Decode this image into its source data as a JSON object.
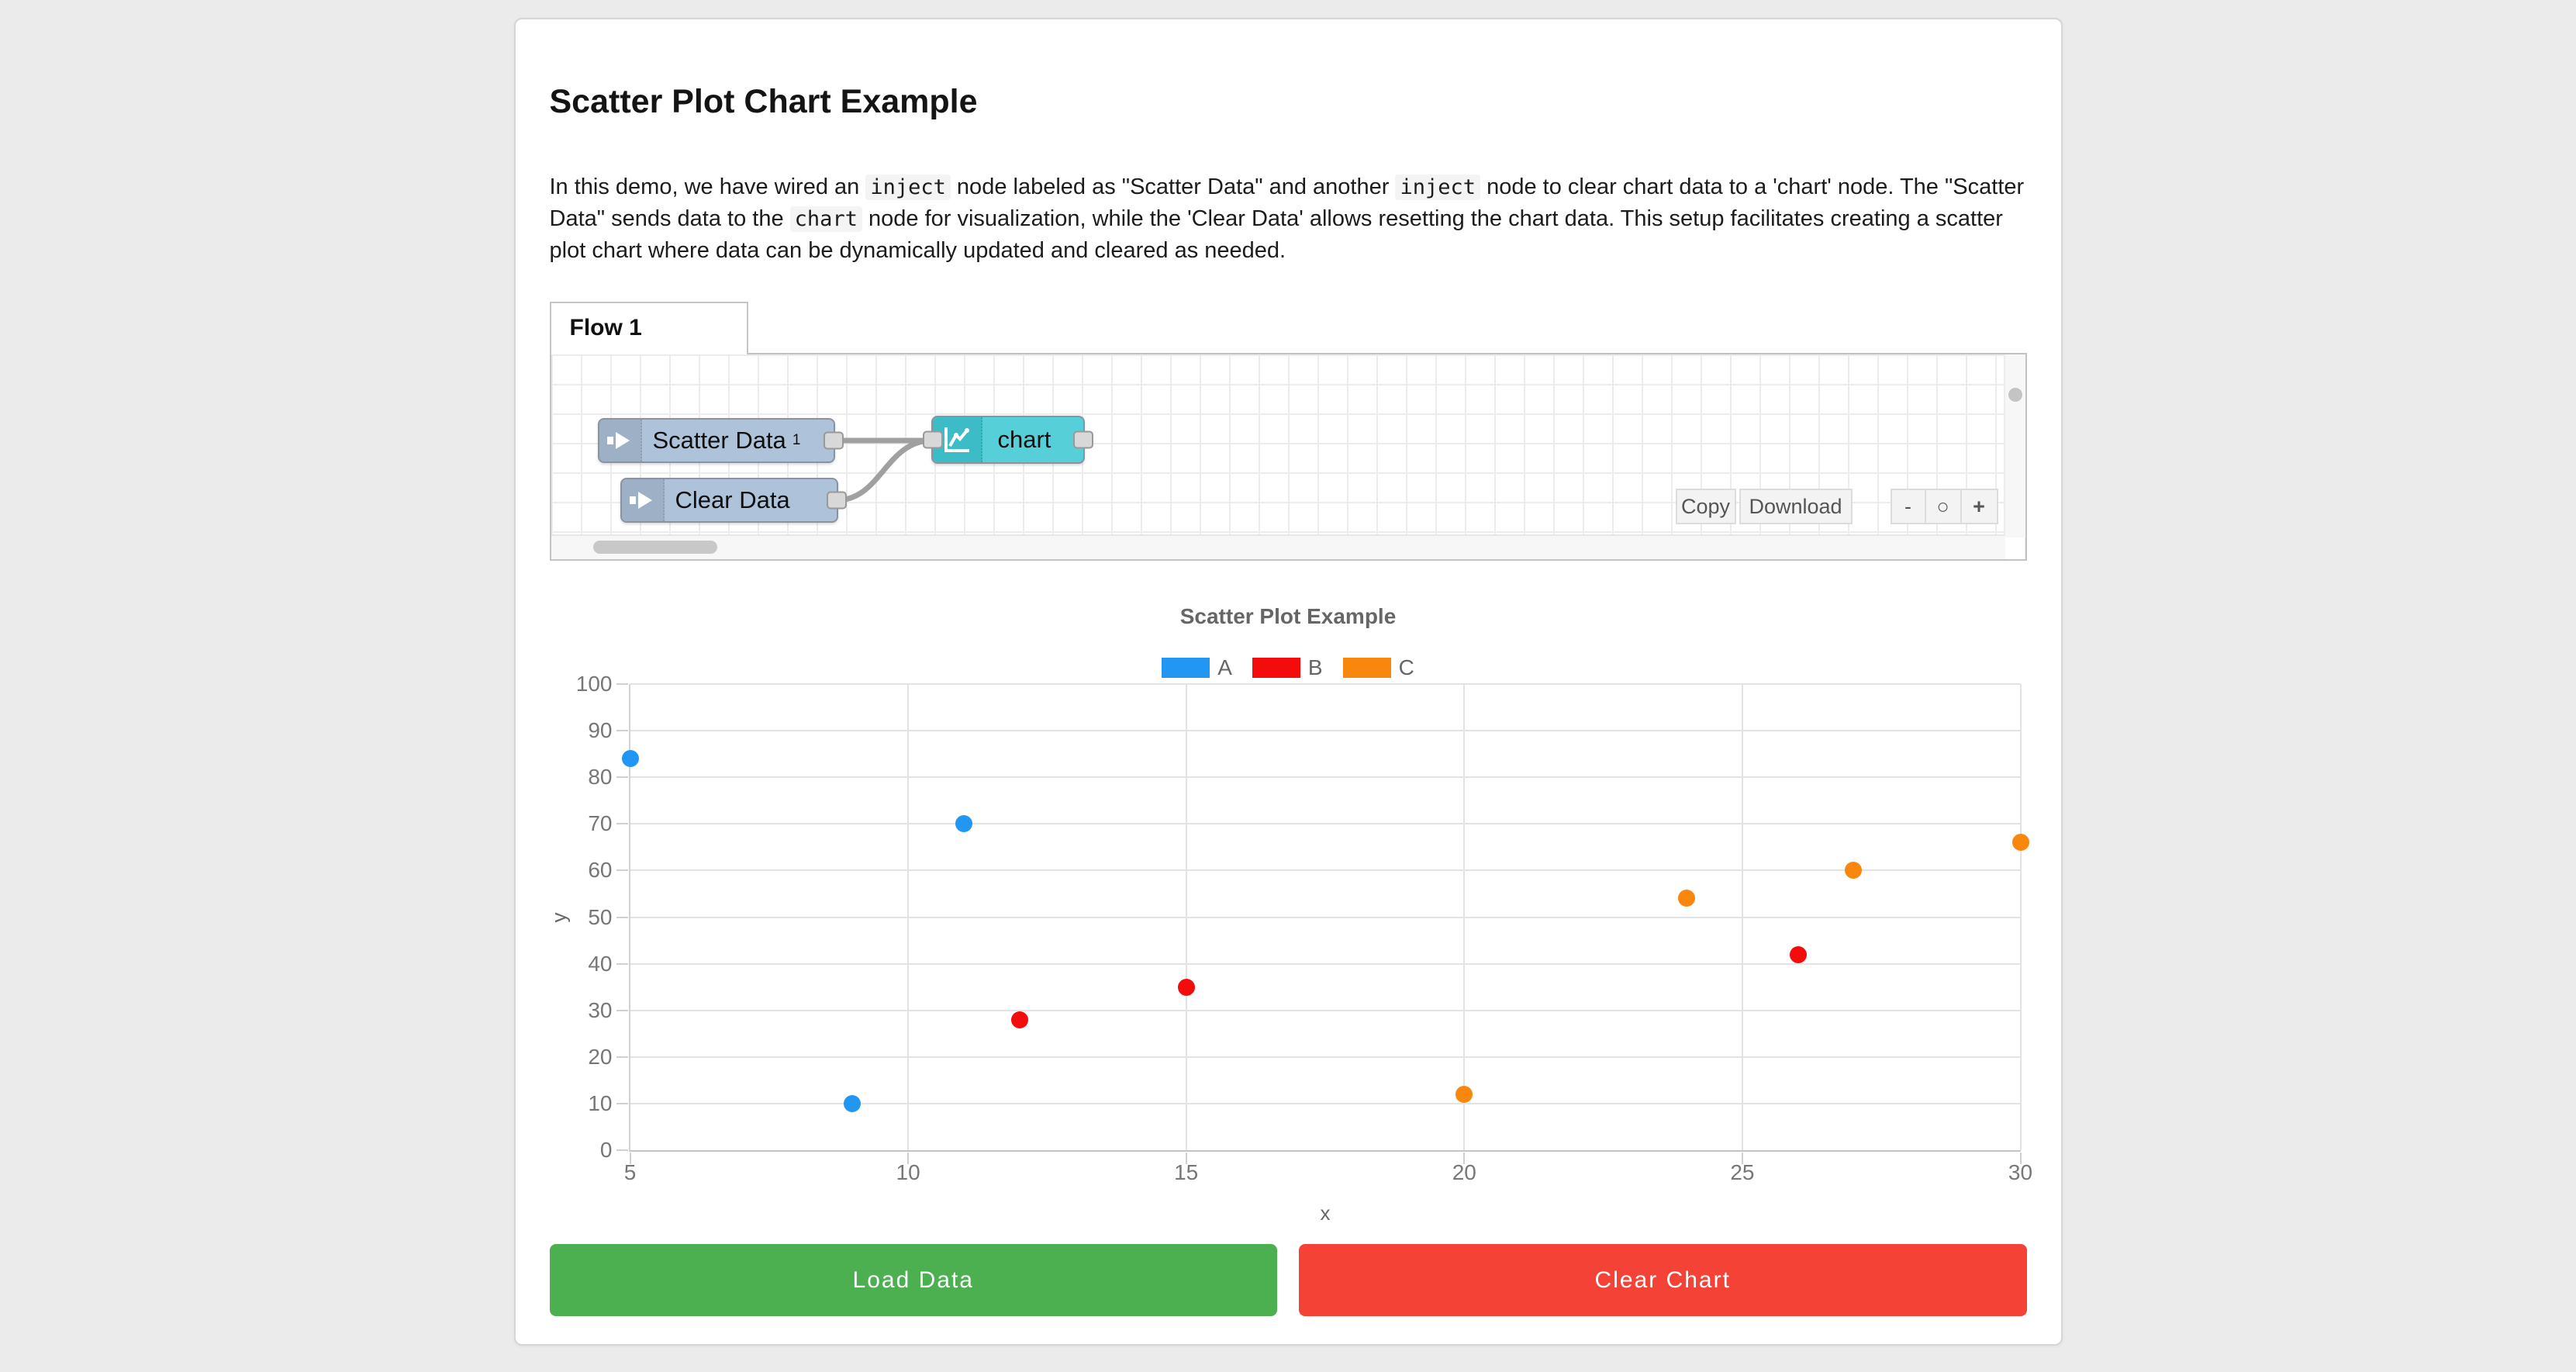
{
  "header": {
    "title": "Scatter Plot Chart Example"
  },
  "description": {
    "segments": [
      {
        "t": "text",
        "v": "In this demo, we have wired an "
      },
      {
        "t": "code",
        "v": "inject"
      },
      {
        "t": "text",
        "v": " node labeled as \"Scatter Data\" and another "
      },
      {
        "t": "code",
        "v": "inject"
      },
      {
        "t": "text",
        "v": " node to clear chart data to a 'chart' node. The \"Scatter Data\" sends data to the "
      },
      {
        "t": "code",
        "v": "chart"
      },
      {
        "t": "text",
        "v": " node for visualization, while the 'Clear Data' allows resetting the chart data. This setup facilitates creating a scatter plot chart where data can be dynamically updated and cleared as needed."
      }
    ]
  },
  "flow_editor": {
    "tab_label": "Flow 1",
    "nodes": {
      "scatter": {
        "label": "Scatter Data",
        "sup": "1"
      },
      "clear": {
        "label": "Clear Data"
      },
      "chart": {
        "label": "chart"
      }
    },
    "toolbar": {
      "copy": "Copy",
      "download": "Download",
      "zoom_out": "-",
      "zoom_reset": "○",
      "zoom_in": "+"
    },
    "colors": {
      "inject_body": "#aec3da",
      "inject_strip": "#9db0c6",
      "chart_body": "#57cfd8",
      "chart_strip": "#3bbcc6",
      "wire": "#a0a0a0"
    }
  },
  "chart_data": {
    "type": "scatter",
    "title": "Scatter Plot Example",
    "xlabel": "x",
    "ylabel": "y",
    "xlim": [
      5,
      30
    ],
    "ylim": [
      0,
      100
    ],
    "x_ticks": [
      5,
      10,
      15,
      20,
      25,
      30
    ],
    "y_ticks": [
      0,
      10,
      20,
      30,
      40,
      50,
      60,
      70,
      80,
      90,
      100
    ],
    "grid": true,
    "legend_position": "top",
    "series": [
      {
        "name": "A",
        "color": "#2196f3",
        "points": [
          [
            5,
            84
          ],
          [
            9,
            10
          ],
          [
            11,
            70
          ]
        ]
      },
      {
        "name": "B",
        "color": "#f40b0b",
        "points": [
          [
            12,
            28
          ],
          [
            15,
            35
          ],
          [
            26,
            42
          ]
        ]
      },
      {
        "name": "C",
        "color": "#f9870e",
        "points": [
          [
            20,
            12
          ],
          [
            24,
            54
          ],
          [
            27,
            60
          ],
          [
            30,
            66
          ]
        ]
      }
    ]
  },
  "actions": {
    "load": {
      "label": "Load Data",
      "color": "#4caf50"
    },
    "clear": {
      "label": "Clear Chart",
      "color": "#f44336"
    }
  }
}
